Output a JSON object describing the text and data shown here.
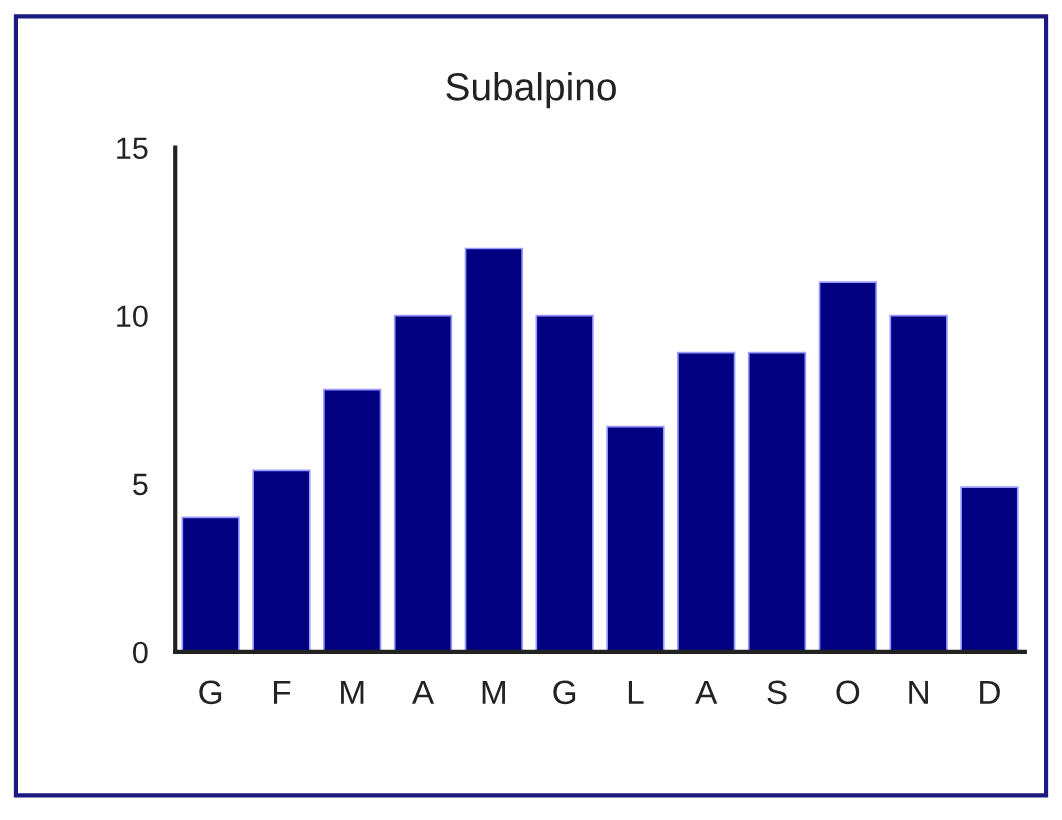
{
  "chart_data": {
    "type": "bar",
    "title": "Subalpino",
    "categories": [
      "G",
      "F",
      "M",
      "A",
      "M",
      "G",
      "L",
      "A",
      "S",
      "O",
      "N",
      "D"
    ],
    "values": [
      4.0,
      5.4,
      7.8,
      10,
      12,
      10,
      6.7,
      8.9,
      8.9,
      11,
      10,
      4.9
    ],
    "color": "#000080",
    "ylim": [
      0,
      15
    ],
    "yticks": [
      0,
      5,
      10,
      15
    ],
    "grid": false
  }
}
